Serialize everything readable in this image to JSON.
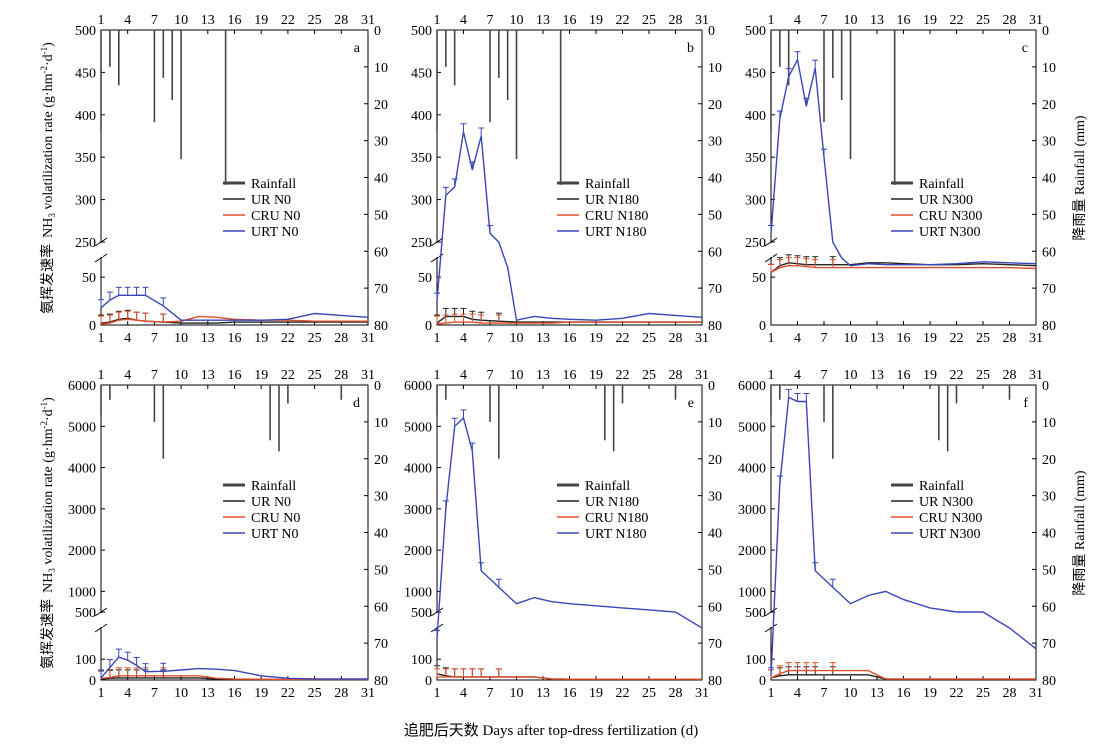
{
  "figure": {
    "x_label": "追肥后天数 Days after top-dress fertilization (d)",
    "y_label_left": {
      "zh": "氨挥发速率",
      "en_prefix": "NH",
      "en_sub": "3",
      "en_suffix": " volatilization rate (g·hm",
      "en_sup1": "-2",
      "en_mid": "·d",
      "en_sup2": "-1",
      "en_close": ")"
    },
    "y_label_right": "降雨量 Rainfall (mm)",
    "x_ticks": [
      1,
      4,
      7,
      10,
      13,
      16,
      19,
      22,
      25,
      28,
      31
    ],
    "colors": {
      "rain": "#444444",
      "UR": "#222222",
      "CRU": "#e0502a",
      "URT": "#3a46b8",
      "axis": "#000000"
    }
  },
  "chart_data": [
    {
      "panel": "a",
      "type": "line",
      "x_ticks": [
        1,
        4,
        7,
        10,
        13,
        16,
        19,
        22,
        25,
        28,
        31
      ],
      "y_ticks_upper": [
        250,
        300,
        350,
        400,
        450,
        500
      ],
      "y_ticks_lower": [
        0,
        50
      ],
      "y_range_upper": [
        250,
        500
      ],
      "y_range_lower": [
        0,
        70
      ],
      "rain_ticks": [
        0,
        10,
        20,
        30,
        40,
        50,
        60,
        70,
        80
      ],
      "rain_range": [
        0,
        80
      ],
      "legend": [
        "Rainfall",
        "UR N0",
        "CRU N0",
        "URT N0"
      ],
      "rainfall": [
        {
          "x": 1,
          "v": 27
        },
        {
          "x": 2,
          "v": 10
        },
        {
          "x": 3,
          "v": 15
        },
        {
          "x": 7,
          "v": 25
        },
        {
          "x": 8,
          "v": 13
        },
        {
          "x": 9,
          "v": 19
        },
        {
          "x": 10,
          "v": 35
        },
        {
          "x": 15,
          "v": 42
        }
      ],
      "series": [
        {
          "name": "UR N0",
          "key": "UR",
          "x": [
            1,
            2,
            3,
            4,
            5,
            6,
            8,
            10,
            12,
            14,
            16,
            19,
            22,
            25,
            28,
            31
          ],
          "y": [
            2,
            3,
            6,
            7,
            5,
            4,
            3,
            2,
            2,
            2,
            3,
            3,
            3,
            3,
            3,
            3
          ]
        },
        {
          "name": "CRU N0",
          "key": "CRU",
          "x": [
            1,
            2,
            3,
            4,
            5,
            6,
            8,
            10,
            12,
            14,
            16,
            19,
            22,
            25,
            28,
            31
          ],
          "y": [
            1,
            2,
            5,
            6,
            5,
            4,
            3,
            4,
            9,
            8,
            6,
            5,
            5,
            4,
            4,
            4
          ]
        },
        {
          "name": "URT N0",
          "key": "URT",
          "x": [
            1,
            2,
            3,
            4,
            5,
            6,
            8,
            10,
            12,
            14,
            16,
            19,
            22,
            25,
            28,
            31
          ],
          "y": [
            18,
            26,
            31,
            31,
            31,
            31,
            20,
            5,
            5,
            5,
            5,
            5,
            6,
            12,
            10,
            8
          ]
        }
      ]
    },
    {
      "panel": "b",
      "type": "line",
      "x_ticks": [
        1,
        4,
        7,
        10,
        13,
        16,
        19,
        22,
        25,
        28,
        31
      ],
      "y_ticks_upper": [
        250,
        300,
        350,
        400,
        450,
        500
      ],
      "y_ticks_lower": [
        0,
        50
      ],
      "y_range_upper": [
        250,
        500
      ],
      "y_range_lower": [
        0,
        70
      ],
      "rain_ticks": [
        0,
        10,
        20,
        30,
        40,
        50,
        60,
        70,
        80
      ],
      "rain_range": [
        0,
        80
      ],
      "legend": [
        "Rainfall",
        "UR N180",
        "CRU N180",
        "URT N180"
      ],
      "rainfall": [
        {
          "x": 1,
          "v": 27
        },
        {
          "x": 2,
          "v": 10
        },
        {
          "x": 3,
          "v": 15
        },
        {
          "x": 7,
          "v": 25
        },
        {
          "x": 8,
          "v": 13
        },
        {
          "x": 9,
          "v": 19
        },
        {
          "x": 10,
          "v": 35
        },
        {
          "x": 15,
          "v": 42
        }
      ],
      "series": [
        {
          "name": "UR N180",
          "key": "UR",
          "x": [
            1,
            2,
            3,
            4,
            5,
            6,
            8,
            10,
            12,
            14,
            16,
            19,
            22,
            25,
            28,
            31
          ],
          "y": [
            2,
            9,
            9,
            9,
            6,
            5,
            4,
            3,
            3,
            3,
            3,
            3,
            3,
            3,
            3,
            3
          ]
        },
        {
          "name": "CRU N180",
          "key": "CRU",
          "x": [
            1,
            2,
            3,
            4,
            5,
            6,
            8,
            10,
            12,
            14,
            16,
            19,
            22,
            25,
            28,
            31
          ],
          "y": [
            1,
            2,
            3,
            3,
            3,
            2,
            2,
            2,
            2,
            2,
            3,
            3,
            3,
            3,
            3,
            3
          ]
        },
        {
          "name": "URT N180",
          "key": "URT",
          "x": [
            1,
            2,
            3,
            4,
            5,
            6,
            7,
            8,
            9,
            10,
            12,
            14,
            16,
            19,
            22,
            25,
            28,
            31
          ],
          "y": [
            25,
            305,
            315,
            380,
            335,
            375,
            260,
            150,
            60,
            5,
            9,
            7,
            6,
            5,
            7,
            12,
            10,
            8
          ]
        }
      ]
    },
    {
      "panel": "c",
      "type": "line",
      "x_ticks": [
        1,
        4,
        7,
        10,
        13,
        16,
        19,
        22,
        25,
        28,
        31
      ],
      "y_ticks_upper": [
        250,
        300,
        350,
        400,
        450,
        500
      ],
      "y_ticks_lower": [
        0,
        50
      ],
      "y_range_upper": [
        250,
        500
      ],
      "y_range_lower": [
        0,
        70
      ],
      "rain_ticks": [
        0,
        10,
        20,
        30,
        40,
        50,
        60,
        70,
        80
      ],
      "rain_range": [
        0,
        80
      ],
      "legend": [
        "Rainfall",
        "UR N300",
        "CRU N300",
        "URT N300"
      ],
      "rainfall": [
        {
          "x": 1,
          "v": 27
        },
        {
          "x": 2,
          "v": 10
        },
        {
          "x": 3,
          "v": 15
        },
        {
          "x": 7,
          "v": 25
        },
        {
          "x": 8,
          "v": 13
        },
        {
          "x": 9,
          "v": 19
        },
        {
          "x": 10,
          "v": 35
        },
        {
          "x": 15,
          "v": 42
        }
      ],
      "series": [
        {
          "name": "UR N300",
          "key": "UR",
          "x": [
            1,
            2,
            3,
            4,
            5,
            6,
            8,
            10,
            12,
            14,
            16,
            19,
            22,
            25,
            28,
            31
          ],
          "y": [
            55,
            62,
            65,
            64,
            63,
            63,
            63,
            63,
            65,
            65,
            64,
            63,
            63,
            64,
            63,
            62
          ]
        },
        {
          "name": "CRU N300",
          "key": "CRU",
          "x": [
            1,
            2,
            3,
            4,
            5,
            6,
            8,
            10,
            12,
            14,
            16,
            19,
            22,
            25,
            28,
            31
          ],
          "y": [
            55,
            60,
            62,
            62,
            61,
            60,
            60,
            60,
            60,
            60,
            60,
            60,
            60,
            60,
            60,
            59
          ]
        },
        {
          "name": "URT N300",
          "key": "URT",
          "x": [
            1,
            2,
            3,
            4,
            5,
            6,
            7,
            8,
            9,
            10,
            12,
            14,
            16,
            19,
            22,
            25,
            28,
            31
          ],
          "y": [
            260,
            395,
            445,
            465,
            410,
            455,
            350,
            180,
            70,
            62,
            64,
            63,
            63,
            63,
            64,
            66,
            65,
            64
          ]
        }
      ]
    },
    {
      "panel": "d",
      "type": "line",
      "x_ticks": [
        1,
        4,
        7,
        10,
        13,
        16,
        19,
        22,
        25,
        28,
        31
      ],
      "y_ticks_upper": [
        500,
        1000,
        2000,
        3000,
        4000,
        5000,
        6000
      ],
      "y_ticks_lower": [
        0,
        100
      ],
      "y_range_upper": [
        500,
        6000
      ],
      "y_range_lower": [
        0,
        250
      ],
      "rain_ticks": [
        0,
        10,
        20,
        30,
        40,
        50,
        60,
        70,
        80
      ],
      "rain_range": [
        0,
        80
      ],
      "legend": [
        "Rainfall",
        "UR N0",
        "CRU N0",
        "URT N0"
      ],
      "rainfall": [
        {
          "x": 1,
          "v": 8
        },
        {
          "x": 2,
          "v": 4
        },
        {
          "x": 7,
          "v": 10
        },
        {
          "x": 8,
          "v": 20
        },
        {
          "x": 20,
          "v": 15
        },
        {
          "x": 21,
          "v": 18
        },
        {
          "x": 22,
          "v": 5
        },
        {
          "x": 28,
          "v": 4
        }
      ],
      "series": [
        {
          "name": "UR N0",
          "key": "UR",
          "x": [
            1,
            2,
            3,
            4,
            5,
            6,
            8,
            10,
            12,
            14,
            16,
            19,
            22,
            25,
            28,
            31
          ],
          "y": [
            5,
            8,
            10,
            10,
            10,
            10,
            10,
            10,
            10,
            5,
            4,
            3,
            3,
            3,
            3,
            3
          ]
        },
        {
          "name": "CRU N0",
          "key": "CRU",
          "x": [
            1,
            2,
            3,
            4,
            5,
            6,
            8,
            10,
            12,
            14,
            16,
            19,
            22,
            25,
            28,
            31
          ],
          "y": [
            8,
            12,
            20,
            20,
            20,
            20,
            20,
            20,
            20,
            8,
            5,
            4,
            3,
            3,
            3,
            3
          ]
        },
        {
          "name": "URT N0",
          "key": "URT",
          "x": [
            1,
            2,
            3,
            4,
            5,
            6,
            8,
            10,
            12,
            14,
            16,
            19,
            22,
            25,
            28,
            31
          ],
          "y": [
            10,
            60,
            110,
            95,
            70,
            40,
            42,
            48,
            55,
            52,
            45,
            20,
            8,
            5,
            5,
            5
          ]
        }
      ]
    },
    {
      "panel": "e",
      "type": "line",
      "x_ticks": [
        1,
        4,
        7,
        10,
        13,
        16,
        19,
        22,
        25,
        28,
        31
      ],
      "y_ticks_upper": [
        500,
        1000,
        2000,
        3000,
        4000,
        5000,
        6000
      ],
      "y_ticks_lower": [
        0,
        100
      ],
      "y_range_upper": [
        500,
        6000
      ],
      "y_range_lower": [
        0,
        250
      ],
      "rain_ticks": [
        0,
        10,
        20,
        30,
        40,
        50,
        60,
        70,
        80
      ],
      "rain_range": [
        0,
        80
      ],
      "legend": [
        "Rainfall",
        "UR N180",
        "CRU N180",
        "URT N180"
      ],
      "rainfall": [
        {
          "x": 1,
          "v": 8
        },
        {
          "x": 2,
          "v": 4
        },
        {
          "x": 7,
          "v": 10
        },
        {
          "x": 8,
          "v": 20
        },
        {
          "x": 20,
          "v": 15
        },
        {
          "x": 21,
          "v": 18
        },
        {
          "x": 22,
          "v": 5
        },
        {
          "x": 28,
          "v": 4
        }
      ],
      "series": [
        {
          "name": "UR N180",
          "key": "UR",
          "x": [
            1,
            2,
            3,
            4,
            5,
            6,
            8,
            10,
            12,
            14,
            16,
            19,
            22,
            25,
            28,
            31
          ],
          "y": [
            30,
            20,
            15,
            15,
            15,
            15,
            15,
            15,
            15,
            5,
            4,
            4,
            4,
            4,
            4,
            4
          ]
        },
        {
          "name": "CRU N180",
          "key": "CRU",
          "x": [
            1,
            2,
            3,
            4,
            5,
            6,
            8,
            10,
            12,
            14,
            16,
            19,
            22,
            25,
            28,
            31
          ],
          "y": [
            15,
            15,
            15,
            15,
            15,
            15,
            15,
            15,
            15,
            5,
            4,
            4,
            4,
            4,
            4,
            4
          ]
        },
        {
          "name": "URT N180",
          "key": "URT",
          "x": [
            1,
            2,
            3,
            4,
            5,
            6,
            8,
            10,
            12,
            14,
            16,
            19,
            22,
            25,
            28,
            31
          ],
          "y": [
            200,
            3000,
            5000,
            5200,
            4400,
            1500,
            1100,
            700,
            850,
            750,
            700,
            650,
            600,
            550,
            400,
            250
          ]
        }
      ]
    },
    {
      "panel": "f",
      "type": "line",
      "x_ticks": [
        1,
        4,
        7,
        10,
        13,
        16,
        19,
        22,
        25,
        28,
        31
      ],
      "y_ticks_upper": [
        500,
        1000,
        2000,
        3000,
        4000,
        5000,
        6000
      ],
      "y_ticks_lower": [
        0,
        100
      ],
      "y_range_upper": [
        500,
        6000
      ],
      "y_range_lower": [
        0,
        250
      ],
      "rain_ticks": [
        0,
        10,
        20,
        30,
        40,
        50,
        60,
        70,
        80
      ],
      "rain_range": [
        0,
        80
      ],
      "legend": [
        "Rainfall",
        "UR N300",
        "CRU N300",
        "URT N300"
      ],
      "rainfall": [
        {
          "x": 1,
          "v": 8
        },
        {
          "x": 2,
          "v": 4
        },
        {
          "x": 7,
          "v": 10
        },
        {
          "x": 8,
          "v": 20
        },
        {
          "x": 20,
          "v": 15
        },
        {
          "x": 21,
          "v": 18
        },
        {
          "x": 22,
          "v": 5
        },
        {
          "x": 28,
          "v": 4
        }
      ],
      "series": [
        {
          "name": "UR N300",
          "key": "UR",
          "x": [
            1,
            2,
            3,
            4,
            5,
            6,
            8,
            10,
            12,
            14,
            16,
            19,
            22,
            25,
            28,
            31
          ],
          "y": [
            10,
            20,
            25,
            25,
            25,
            25,
            25,
            25,
            25,
            5,
            4,
            4,
            4,
            4,
            4,
            4
          ]
        },
        {
          "name": "CRU N300",
          "key": "CRU",
          "x": [
            1,
            2,
            3,
            4,
            5,
            6,
            8,
            10,
            12,
            14,
            16,
            19,
            22,
            25,
            28,
            31
          ],
          "y": [
            10,
            30,
            45,
            45,
            45,
            45,
            45,
            45,
            45,
            5,
            5,
            5,
            5,
            5,
            5,
            5
          ]
        },
        {
          "name": "URT N300",
          "key": "URT",
          "x": [
            1,
            2,
            3,
            4,
            5,
            6,
            8,
            10,
            12,
            14,
            16,
            19,
            22,
            25,
            28,
            31
          ],
          "y": [
            20,
            3600,
            5700,
            5600,
            5600,
            1500,
            1100,
            700,
            900,
            1000,
            800,
            600,
            450,
            350,
            250,
            150
          ]
        }
      ]
    }
  ]
}
